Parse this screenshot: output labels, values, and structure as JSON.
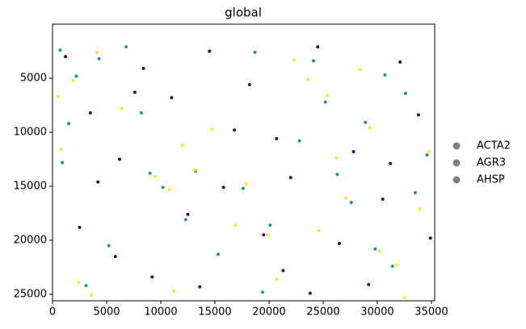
{
  "chart_data": {
    "type": "scatter",
    "title": "global",
    "xlim": [
      0,
      35300
    ],
    "ylim": [
      25600,
      0
    ],
    "xticks": [
      0,
      5000,
      10000,
      15000,
      20000,
      25000,
      30000,
      35000
    ],
    "yticks": [
      5000,
      10000,
      15000,
      20000,
      25000
    ],
    "y_inverted": true,
    "legend_position": "right",
    "legend_marker_color": "#808080",
    "series": [
      {
        "name": "ACTA2",
        "color": "#440154",
        "x": [
          1200,
          3500,
          6200,
          8400,
          11000,
          14500,
          16800,
          19500,
          22000,
          24500,
          27800,
          30500,
          33800,
          2500,
          5800,
          9200,
          12500,
          15800,
          18200,
          21300,
          23800,
          26500,
          29200,
          32100,
          34900,
          4200,
          7600,
          13600,
          20700,
          31200
        ],
        "y": [
          3000,
          8200,
          12500,
          4100,
          6800,
          2500,
          9800,
          19500,
          14200,
          2100,
          11800,
          16200,
          8400,
          18800,
          21500,
          23400,
          17600,
          15100,
          5600,
          22800,
          24900,
          20300,
          24100,
          3500,
          19800,
          14600,
          6300,
          24300,
          10600,
          12900
        ]
      },
      {
        "name": "AGR3",
        "color": "#21918c",
        "x": [
          700,
          2200,
          4300,
          1500,
          9000,
          10200,
          13200,
          17600,
          20100,
          22800,
          26300,
          27600,
          29800,
          31400,
          33500,
          34600,
          25200,
          18700,
          5200,
          3100,
          900,
          12300,
          28900,
          32600,
          8200,
          6800,
          24100,
          19400,
          30700,
          15300
        ],
        "y": [
          2400,
          4800,
          3200,
          9200,
          13800,
          15100,
          13600,
          15200,
          18600,
          10800,
          13900,
          16500,
          20800,
          22400,
          15600,
          12100,
          7200,
          2600,
          20500,
          24200,
          12800,
          18100,
          9100,
          6400,
          8200,
          2100,
          3400,
          24800,
          4700,
          21300
        ]
      },
      {
        "name": "AHSP",
        "color": "#fde725",
        "x": [
          1900,
          4100,
          800,
          9500,
          10800,
          13100,
          17900,
          19900,
          20700,
          25400,
          27100,
          30200,
          31800,
          33900,
          34800,
          2400,
          3600,
          28400,
          22300,
          6400,
          26200,
          14700,
          29300,
          16900,
          500,
          12000,
          23600,
          11200,
          32500,
          24600
        ],
        "y": [
          5200,
          2600,
          11600,
          14100,
          15300,
          13500,
          14800,
          19500,
          23600,
          6600,
          16100,
          21000,
          22300,
          17100,
          11800,
          23900,
          25100,
          4200,
          3300,
          7800,
          12400,
          9700,
          9600,
          18600,
          6700,
          11200,
          5100,
          24700,
          25300,
          19100
        ]
      }
    ]
  }
}
